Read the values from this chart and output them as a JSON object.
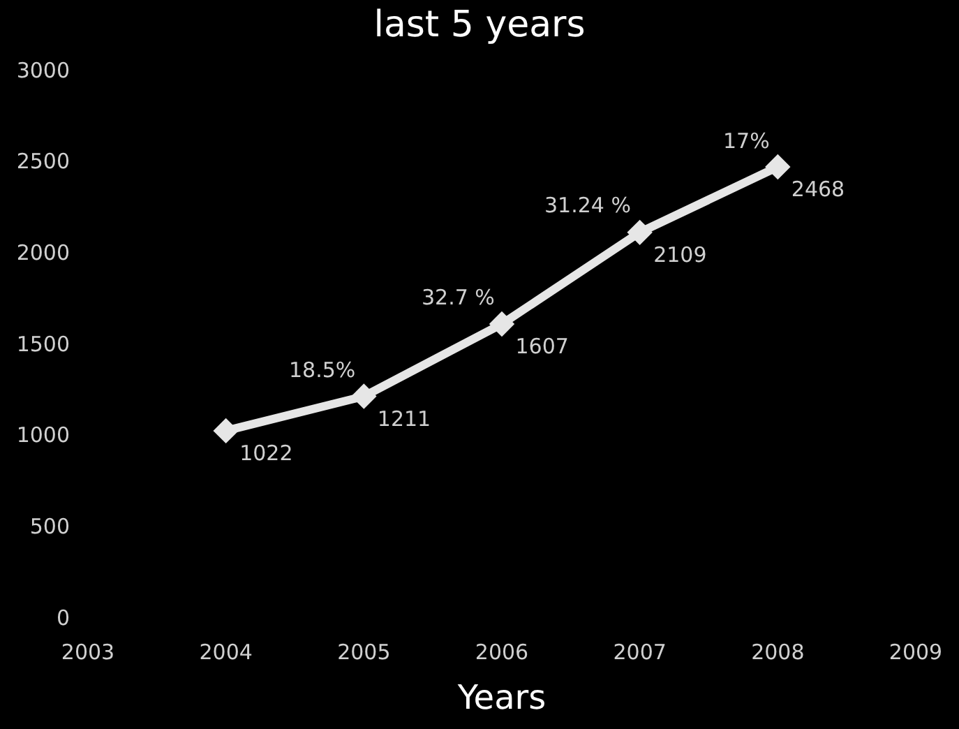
{
  "chart_data": {
    "type": "line",
    "title": "last 5 years",
    "xlabel": "Years",
    "x": [
      2004,
      2005,
      2006,
      2007,
      2008
    ],
    "series": [
      {
        "color": "#e6e6e6",
        "values": [
          1022,
          1211,
          1607,
          2109,
          2468
        ]
      }
    ],
    "xlim": [
      2003,
      2009
    ],
    "xticks": [
      2003,
      2004,
      2005,
      2006,
      2007,
      2008,
      2009
    ],
    "ylim": [
      0,
      3000
    ],
    "yticks": [
      0,
      500,
      1000,
      1500,
      2000,
      2500,
      3000
    ],
    "annotations": [
      {
        "text": "18.5%",
        "x": 2005,
        "y": 1211
      },
      {
        "text": "32.7 %",
        "x": 2006,
        "y": 1607
      },
      {
        "text": "31.24 %",
        "x": 2007,
        "y": 2109
      },
      {
        "text": "17%",
        "x": 2008,
        "y": 2468
      }
    ],
    "data_labels": true,
    "marker": "diamond",
    "grid": false
  }
}
